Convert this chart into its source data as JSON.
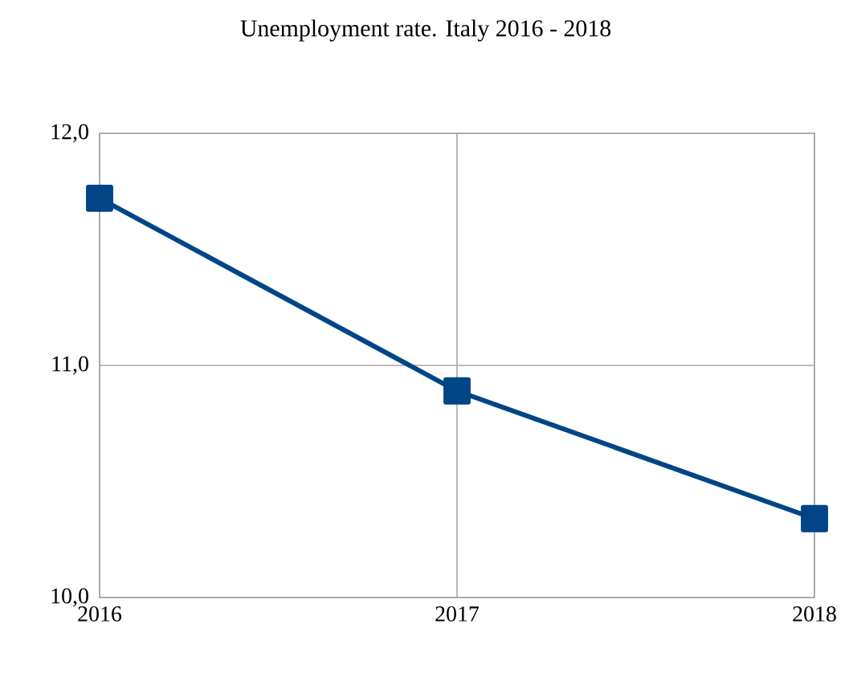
{
  "chart_data": {
    "type": "line",
    "title": "Unemployment rate. Italy 2016 - 2018",
    "x": [
      2016,
      2017,
      2018
    ],
    "series": [
      {
        "color": "#004586",
        "values": [
          11.72,
          10.89,
          10.34
        ]
      }
    ],
    "xlim": [
      2016,
      2018
    ],
    "xticks": [
      2016,
      2017,
      2018
    ],
    "ylim": [
      10,
      12
    ],
    "yticks": [
      {
        "value": 10,
        "label": "10,0"
      },
      {
        "value": 11,
        "label": "11,0"
      },
      {
        "value": 12,
        "label": "12,0"
      }
    ],
    "grid": true,
    "marker": "square",
    "line_style": "solid"
  }
}
